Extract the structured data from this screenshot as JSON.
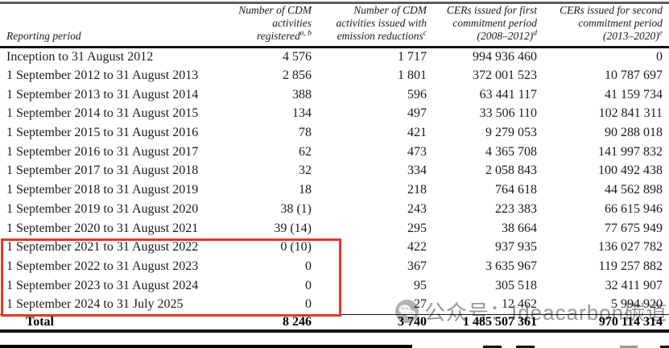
{
  "table": {
    "headers": [
      {
        "lines": [
          "Reporting period"
        ],
        "sup": ""
      },
      {
        "lines": [
          "Number of CDM",
          "activities",
          "registered"
        ],
        "sup": "a, b"
      },
      {
        "lines": [
          "Number of CDM",
          "activities issued with",
          "emission reductions"
        ],
        "sup": "c"
      },
      {
        "lines": [
          "CERs issued for first",
          "commitment period",
          "(2008–2012)"
        ],
        "sup": "d"
      },
      {
        "lines": [
          "CERs issued for second",
          "commitment period",
          "(2013–2020)"
        ],
        "sup": "e"
      }
    ],
    "rows": [
      [
        "Inception to 31 August 2012",
        "4 576",
        "1 717",
        "994 936 460",
        "0"
      ],
      [
        "1 September 2012 to 31 August 2013",
        "2 856",
        "1 801",
        "372 001 523",
        "10 787 697"
      ],
      [
        "1 September 2013 to 31 August 2014",
        "388",
        "596",
        "63 441 117",
        "41 159 734"
      ],
      [
        "1 September 2014 to 31 August 2015",
        "134",
        "497",
        "33 506 110",
        "102 841 311"
      ],
      [
        "1 September 2015 to 31 August 2016",
        "78",
        "421",
        "9 279 053",
        "90 288 018"
      ],
      [
        "1 September 2016 to 31 August 2017",
        "62",
        "473",
        "4 365 708",
        "141 997 832"
      ],
      [
        "1 September 2017 to 31 August 2018",
        "32",
        "334",
        "2 058 843",
        "100 492 438"
      ],
      [
        "1 September 2018 to 31 August 2019",
        "18",
        "218",
        "764 618",
        "44 562 898"
      ],
      [
        "1 September 2019 to 31 August 2020",
        "38 (1)",
        "243",
        "223 383",
        "66 615 946"
      ],
      [
        "1 September 2020 to 31 August 2021",
        "39 (14)",
        "295",
        "38 664",
        "77 675 949"
      ],
      [
        "1 September 2021 to 31 August 2022",
        "0 (10)",
        "422",
        "937 935",
        "136 027 782"
      ],
      [
        "1 September 2022 to 31 August 2023",
        "0",
        "367",
        "3 635 967",
        "119 257 882"
      ],
      [
        "1 September 2023 to 31 August 2024",
        "0",
        "95",
        "305 518",
        "32 411 907"
      ],
      [
        "1 September 2024 to 31 July 2025",
        "0",
        "27",
        "12 462",
        "5 994 920"
      ]
    ],
    "total": {
      "label": "Total",
      "values": [
        "8 246",
        "3 740",
        "1 485 507 361",
        "970 114 314"
      ]
    }
  },
  "annotations": {
    "highlight_box": {
      "color": "#dd3b27",
      "rows_covered": "1 September 2021 to 31 July 2025"
    }
  },
  "watermark": {
    "icon": "wechat-icon",
    "text": "公众号：Ideacarbon碳道",
    "color": "#989898"
  }
}
